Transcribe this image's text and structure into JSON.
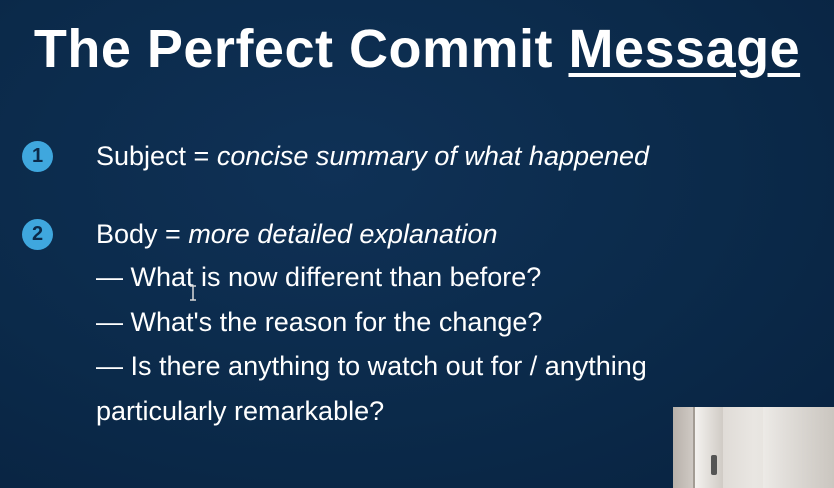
{
  "title": {
    "main": "The Perfect Commit ",
    "underlined": "Message"
  },
  "items": [
    {
      "number": "1",
      "label": "Subject = ",
      "detail": "concise summary of what happened"
    },
    {
      "number": "2",
      "label": "Body = ",
      "detail": "more detailed explanation"
    }
  ],
  "body_lines": [
    "— What is now different than before?",
    "— What's the reason for the change?",
    "— Is there anything to watch out for / anything",
    "particularly remarkable?"
  ],
  "colors": {
    "background": "#0b2a4a",
    "badge": "#3fa7de",
    "text": "#ffffff"
  }
}
